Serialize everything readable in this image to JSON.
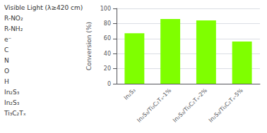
{
  "chart_data": {
    "type": "bar",
    "categories": [
      "In₂S₃",
      "In₂S₃/Ti₃C₂Tₓ-1%",
      "In₂S₃/Ti₃C₂Tₓ-2%",
      "In₂S₃/Ti₃C₂Tₓ-5%"
    ],
    "values": [
      67,
      86,
      84,
      56
    ],
    "color": "#7fff00",
    "ylim": [
      0,
      100
    ],
    "yticks": [
      0,
      20,
      40,
      60,
      80,
      100
    ],
    "ylabel": "Conversion (%)",
    "grid": true,
    "annotations": [
      "Visible Light (λ≥420 cm)",
      "R-NO₂",
      "R-NH₂",
      "e⁻",
      "C",
      "N",
      "O",
      "H",
      "In₂S₃",
      "In₂S₃",
      "Ti₃C₂Tₓ"
    ]
  }
}
